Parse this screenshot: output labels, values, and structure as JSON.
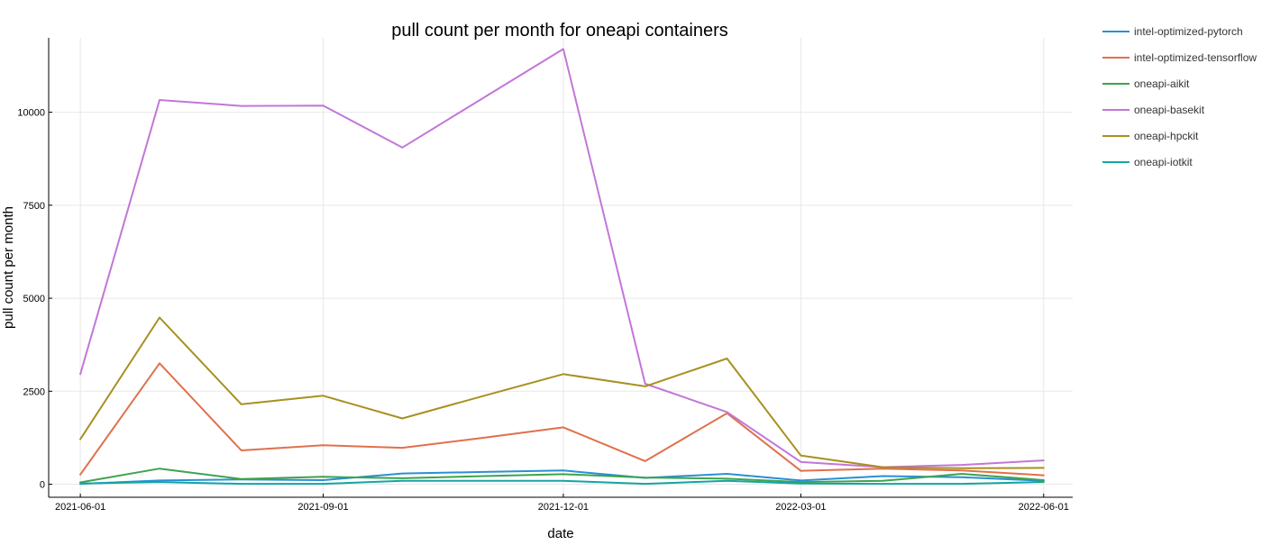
{
  "chart_data": {
    "type": "line",
    "title": "pull count per month for oneapi containers",
    "xlabel": "date",
    "ylabel": "pull count per month",
    "x": [
      "2021-06-01",
      "2021-07-01",
      "2021-08-01",
      "2021-09-01",
      "2021-10-01",
      "2021-11-01",
      "2021-12-01",
      "2022-01-01",
      "2022-02-01",
      "2022-03-01",
      "2022-04-01",
      "2022-05-01",
      "2022-06-01"
    ],
    "x_ticks": [
      "2021-06-01",
      "2021-09-01",
      "2021-12-01",
      "2022-03-01",
      "2022-06-01"
    ],
    "y_ticks": [
      0,
      2500,
      5000,
      7500,
      10000
    ],
    "ylim": [
      -350,
      12000
    ],
    "xlim": [
      "2021-05-20",
      "2022-06-12"
    ],
    "grid": true,
    "legend_position": "top-right-outside",
    "series": [
      {
        "name": "intel-optimized-pytorch",
        "color": "#2a8fd6",
        "values": [
          10,
          100,
          130,
          110,
          290,
          330,
          370,
          170,
          280,
          100,
          220,
          190,
          90
        ]
      },
      {
        "name": "intel-optimized-tensorflow",
        "color": "#e0704c",
        "values": [
          260,
          3250,
          910,
          1050,
          980,
          1250,
          1530,
          620,
          1910,
          360,
          420,
          370,
          240
        ]
      },
      {
        "name": "oneapi-aikit",
        "color": "#3fa34d",
        "values": [
          50,
          420,
          140,
          200,
          160,
          220,
          270,
          180,
          150,
          60,
          90,
          280,
          110
        ]
      },
      {
        "name": "oneapi-basekit",
        "color": "#c277d8",
        "values": [
          2960,
          10330,
          10170,
          10180,
          9050,
          10400,
          11700,
          2700,
          1940,
          600,
          460,
          520,
          640
        ]
      },
      {
        "name": "oneapi-hpckit",
        "color": "#a89020",
        "values": [
          1210,
          4480,
          2150,
          2380,
          1770,
          2380,
          2960,
          2630,
          3380,
          770,
          460,
          430,
          440
        ]
      },
      {
        "name": "oneapi-iotkit",
        "color": "#12a5a5",
        "values": [
          20,
          60,
          10,
          10,
          90,
          90,
          90,
          10,
          90,
          20,
          10,
          10,
          60
        ]
      }
    ]
  }
}
